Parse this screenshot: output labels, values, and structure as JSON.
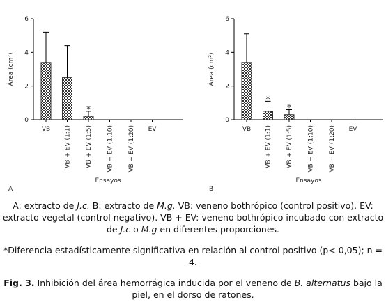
{
  "chart_data": [
    {
      "type": "bar",
      "panel": "A",
      "y_label": "Área (cm²)",
      "x_label": "Ensayos",
      "categories": [
        "VB",
        "VB + EV (1:1)",
        "VB + EV (1:5)",
        "VB + EV (1:10)",
        "VB + EV (1:20)",
        "EV"
      ],
      "values": [
        3.4,
        2.5,
        0.2,
        0,
        0,
        0
      ],
      "errors": [
        1.8,
        1.9,
        0.3,
        null,
        null,
        null
      ],
      "significance": [
        null,
        null,
        "*",
        null,
        null,
        null
      ],
      "ylim": [
        0,
        6
      ],
      "yticks": [
        0,
        2,
        4,
        6
      ],
      "color": "#333333"
    },
    {
      "type": "bar",
      "panel": "B",
      "y_label": "Área (cm²)",
      "x_label": "Ensayos",
      "categories": [
        "VB",
        "VB + EV (1:1)",
        "VB + EV (1:5)",
        "VB + EV (1:10)",
        "VB + EV (1:20)",
        "EV"
      ],
      "values": [
        3.4,
        0.5,
        0.3,
        0,
        0,
        0
      ],
      "errors": [
        1.7,
        0.6,
        0.3,
        null,
        null,
        null
      ],
      "significance": [
        null,
        "*",
        "*",
        null,
        null,
        null
      ],
      "ylim": [
        0,
        6
      ],
      "yticks": [
        0,
        2,
        4,
        6
      ],
      "color": "#333333"
    }
  ],
  "caption": {
    "paragraphs": [
      [
        {
          "text": "A: extracto de "
        },
        {
          "text": "J.c.",
          "italic": true
        },
        {
          "text": " B: extracto de "
        },
        {
          "text": "M.g.",
          "italic": true
        },
        {
          "text": " VB: veneno bothrópico (control positivo). EV: extracto vegetal (control negativo). VB + EV: veneno bothrópico incubado con extracto de "
        },
        {
          "text": "J.c",
          "italic": true
        },
        {
          "text": " o "
        },
        {
          "text": "M.g",
          "italic": true
        },
        {
          "text": " en diferentes proporciones."
        }
      ],
      [
        {
          "text": "*Diferencia estadísticamente significativa en relación al control positivo (p< 0,05); n = 4."
        }
      ],
      [
        {
          "text": "Fig. 3.",
          "bold": true
        },
        {
          "text": " Inhibición del área hemorrágica inducida por el veneno de "
        },
        {
          "text": "B. alternatus",
          "italic": true
        },
        {
          "text": " bajo la piel, en el dorso de ratones."
        }
      ]
    ]
  }
}
